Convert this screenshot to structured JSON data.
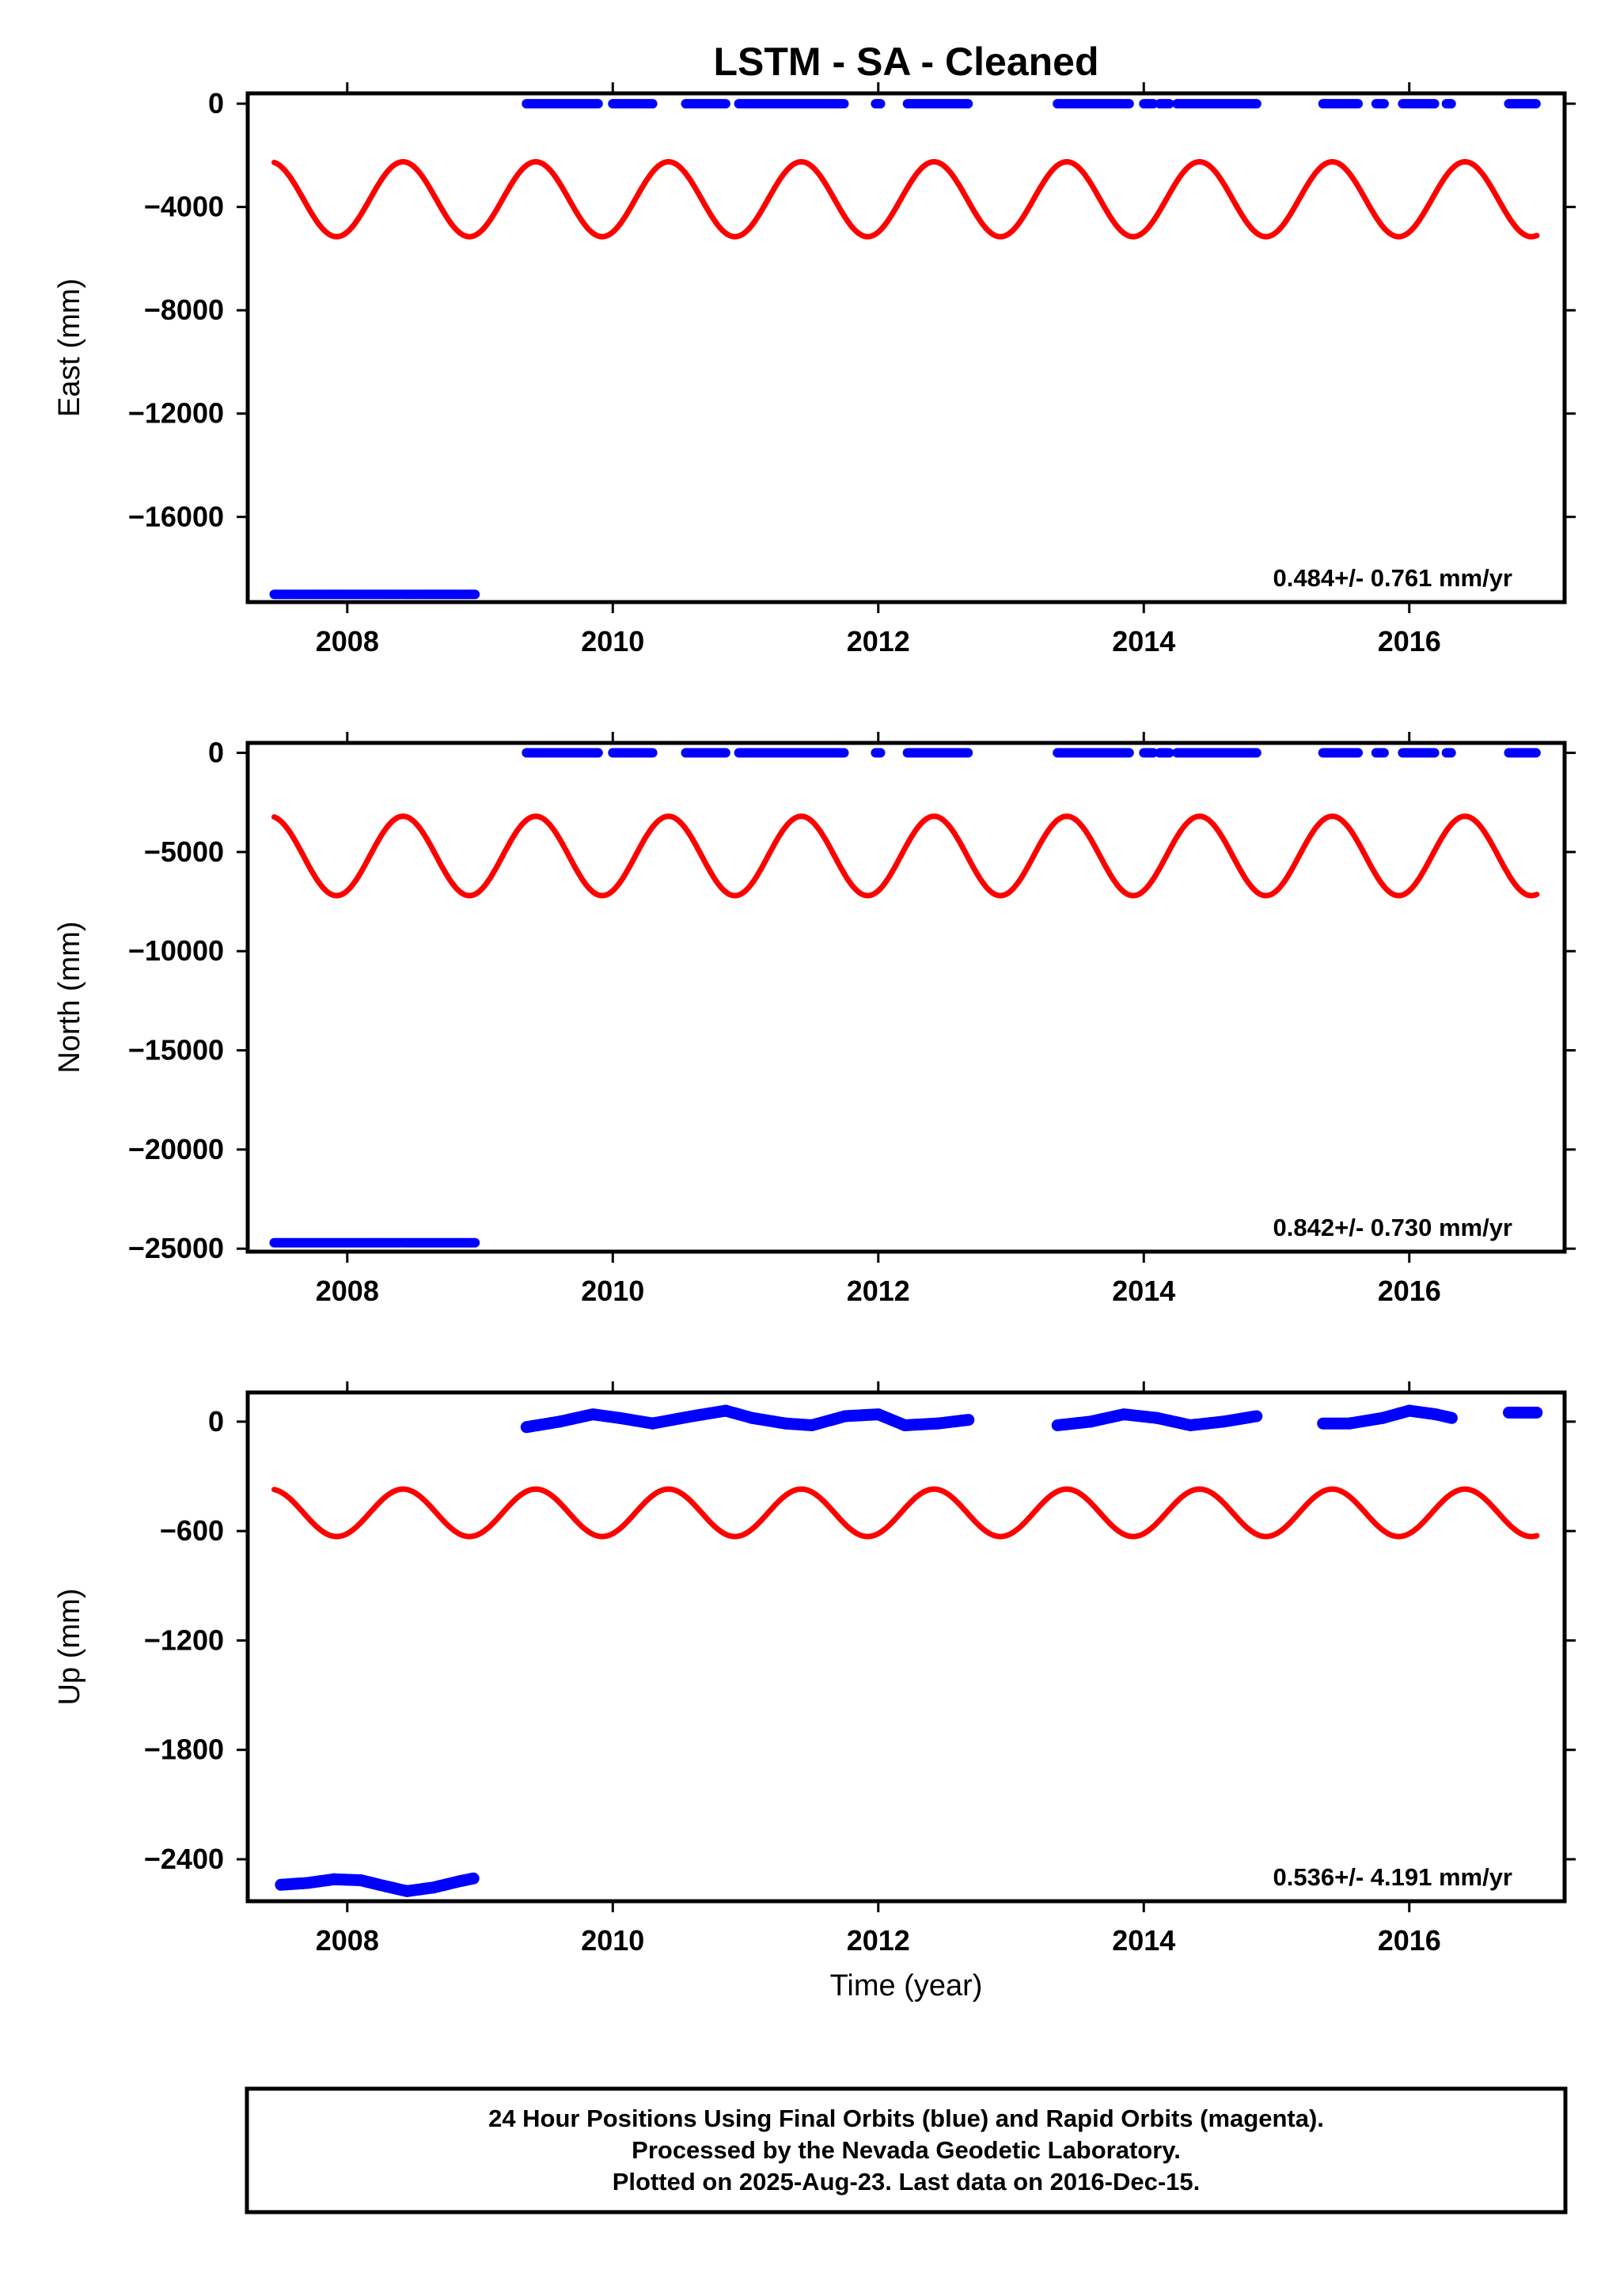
{
  "title": "LSTM  - SA - Cleaned",
  "xlabel": "Time (year)",
  "x_ticks": [
    "2008",
    "2010",
    "2012",
    "2014",
    "2016"
  ],
  "colors": {
    "data": "#0000ff",
    "model": "#ff0000",
    "frame": "#000000"
  },
  "footer": {
    "line1": "24 Hour Positions Using Final Orbits (blue) and Rapid Orbits (magenta).",
    "line2": "Processed by the Nevada Geodetic Laboratory.",
    "line3": "Plotted on 2025-Aug-23. Last data on 2016-Dec-15."
  },
  "chart_data": [
    {
      "type": "scatter",
      "ylabel": "East (mm)",
      "xlim": [
        2007.25,
        2017.17
      ],
      "ylim": [
        -19300,
        400
      ],
      "yticks": [
        0,
        -4000,
        -8000,
        -12000,
        -16000
      ],
      "ytick_labels": [
        "0",
        "−4000",
        "−8000",
        "−12000",
        "−16000"
      ],
      "rate": "0.484+/- 0.761 mm/yr",
      "model_seasonal": {
        "center": -3700,
        "amplitude": 1450,
        "phase_year": 2008.42,
        "x_range": [
          2007.45,
          2016.96
        ]
      },
      "series": [
        {
          "y": -19000,
          "x": [
            [
              2007.45,
              2008.97
            ]
          ]
        },
        {
          "y": 0,
          "x": [
            [
              2009.35,
              2009.9
            ],
            [
              2010.0,
              2010.3
            ],
            [
              2010.55,
              2010.85
            ],
            [
              2010.95,
              2011.75
            ],
            [
              2011.98,
              2012.02
            ],
            [
              2012.22,
              2012.68
            ],
            [
              2013.35,
              2013.9
            ],
            [
              2014.0,
              2014.08
            ],
            [
              2014.12,
              2014.2
            ],
            [
              2014.25,
              2014.85
            ],
            [
              2015.35,
              2015.62
            ],
            [
              2015.75,
              2015.82
            ],
            [
              2015.95,
              2016.2
            ],
            [
              2016.28,
              2016.32
            ],
            [
              2016.75,
              2016.96
            ]
          ]
        }
      ]
    },
    {
      "type": "scatter",
      "ylabel": "North (mm)",
      "xlim": [
        2007.25,
        2017.17
      ],
      "ylim": [
        -25150,
        500
      ],
      "yticks": [
        0,
        -5000,
        -10000,
        -15000,
        -20000,
        -25000
      ],
      "ytick_labels": [
        "0",
        "−5000",
        "−10000",
        "−15000",
        "−20000",
        "−25000"
      ],
      "rate": "0.842+/- 0.730 mm/yr",
      "model_seasonal": {
        "center": -5200,
        "amplitude": 2000,
        "phase_year": 2008.42,
        "x_range": [
          2007.45,
          2016.96
        ]
      },
      "series": [
        {
          "y": -24700,
          "x": [
            [
              2007.45,
              2008.97
            ]
          ]
        },
        {
          "y": 0,
          "x": [
            [
              2009.35,
              2009.9
            ],
            [
              2010.0,
              2010.3
            ],
            [
              2010.55,
              2010.85
            ],
            [
              2010.95,
              2011.75
            ],
            [
              2011.98,
              2012.02
            ],
            [
              2012.22,
              2012.68
            ],
            [
              2013.35,
              2013.9
            ],
            [
              2014.0,
              2014.08
            ],
            [
              2014.12,
              2014.2
            ],
            [
              2014.25,
              2014.85
            ],
            [
              2015.35,
              2015.62
            ],
            [
              2015.75,
              2015.82
            ],
            [
              2015.95,
              2016.2
            ],
            [
              2016.28,
              2016.32
            ],
            [
              2016.75,
              2016.96
            ]
          ]
        }
      ]
    },
    {
      "type": "scatter",
      "ylabel": "Up (mm)",
      "xlim": [
        2007.25,
        2017.17
      ],
      "ylim": [
        -2630,
        160
      ],
      "yticks": [
        0,
        -600,
        -1200,
        -1800,
        -2400
      ],
      "ytick_labels": [
        "0",
        "−600",
        "−1200",
        "−1800",
        "−2400"
      ],
      "rate": "0.536+/- 4.191 mm/yr",
      "model_seasonal": {
        "center": -500,
        "amplitude": 130,
        "phase_year": 2008.42,
        "x_range": [
          2007.45,
          2016.96
        ]
      },
      "series": [
        {
          "points": [
            [
              2007.5,
              -2540
            ],
            [
              2007.7,
              -2530
            ],
            [
              2007.9,
              -2510
            ],
            [
              2008.1,
              -2515
            ],
            [
              2008.3,
              -2550
            ],
            [
              2008.45,
              -2575
            ],
            [
              2008.65,
              -2555
            ],
            [
              2008.85,
              -2520
            ],
            [
              2008.95,
              -2505
            ]
          ]
        },
        {
          "points": [
            [
              2009.35,
              -30
            ],
            [
              2009.6,
              0
            ],
            [
              2009.85,
              40
            ],
            [
              2010.05,
              20
            ],
            [
              2010.3,
              -10
            ],
            [
              2010.6,
              30
            ],
            [
              2010.85,
              60
            ],
            [
              2011.05,
              20
            ],
            [
              2011.3,
              -10
            ],
            [
              2011.5,
              -20
            ],
            [
              2011.75,
              30
            ],
            [
              2012.0,
              40
            ],
            [
              2012.2,
              -20
            ],
            [
              2012.45,
              -10
            ],
            [
              2012.68,
              10
            ],
            [
              2013.35,
              -20
            ],
            [
              2013.6,
              0
            ],
            [
              2013.85,
              40
            ],
            [
              2014.1,
              20
            ],
            [
              2014.35,
              -20
            ],
            [
              2014.6,
              0
            ],
            [
              2014.85,
              30
            ],
            [
              2015.35,
              -10
            ],
            [
              2015.55,
              -10
            ],
            [
              2015.8,
              20
            ],
            [
              2016.0,
              60
            ],
            [
              2016.2,
              40
            ],
            [
              2016.32,
              20
            ],
            [
              2016.75,
              50
            ],
            [
              2016.96,
              50
            ]
          ]
        }
      ]
    }
  ]
}
